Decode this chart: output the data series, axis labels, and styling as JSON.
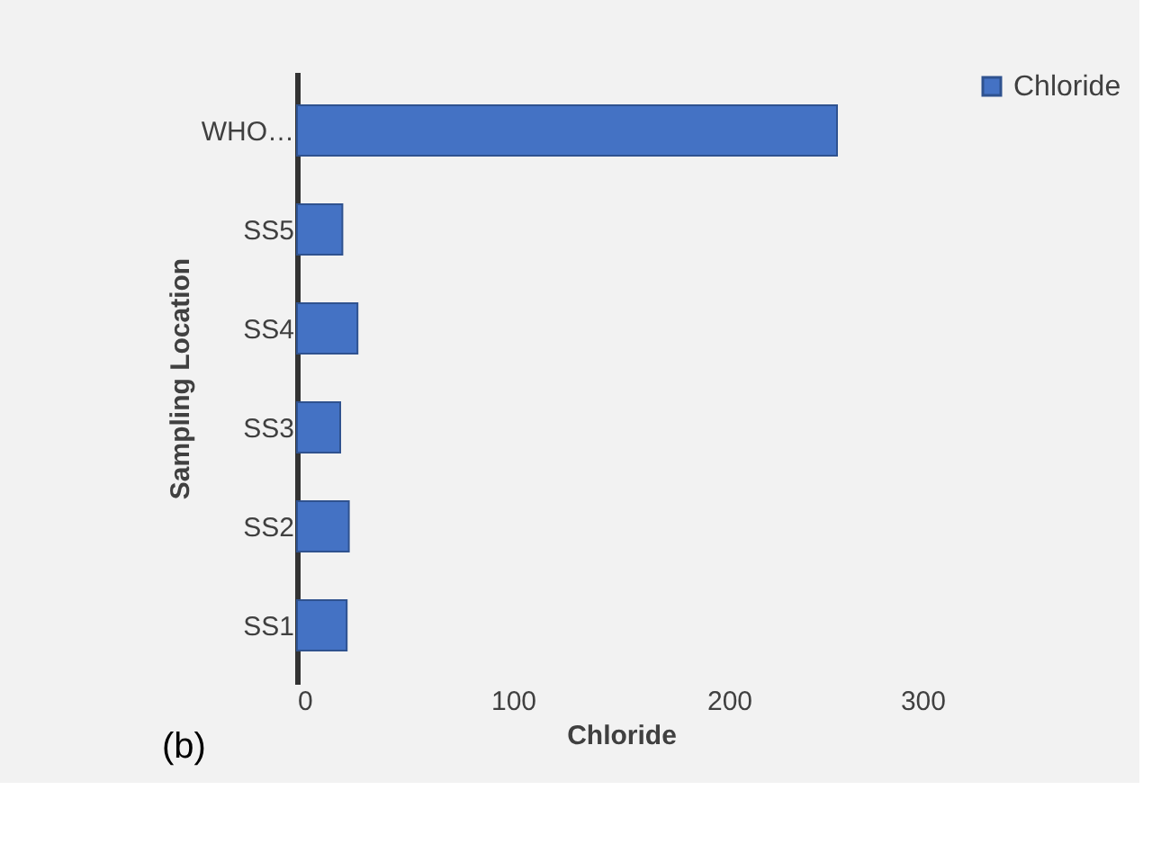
{
  "chart_data": {
    "type": "bar",
    "orientation": "horizontal",
    "categories": [
      "WHO…",
      "SS5",
      "SS4",
      "SS3",
      "SS2",
      "SS1"
    ],
    "series": [
      {
        "name": "Chloride",
        "color": "#4472c4",
        "values": [
          250,
          21,
          28,
          20,
          24,
          23
        ]
      }
    ],
    "xlabel": "Chloride",
    "ylabel": "Sampling Location",
    "xlim": [
      0,
      300
    ],
    "xticks": [
      0,
      100,
      200,
      300
    ],
    "grid": false,
    "legend": "right",
    "annotations": [
      "(b)"
    ]
  }
}
